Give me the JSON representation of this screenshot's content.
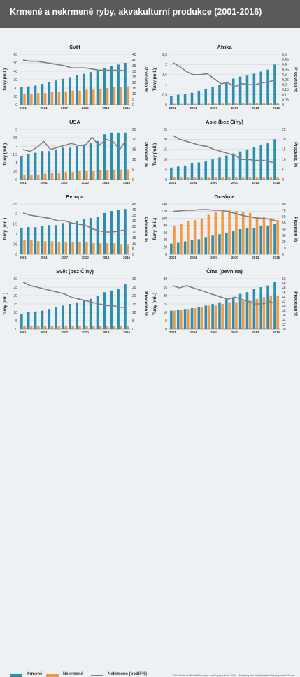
{
  "header": {
    "title": "Krmené a nekrmené ryby, akvakulturní produkce (2001-2016)"
  },
  "colors": {
    "fed": "#2b8eae",
    "nonfed": "#f29a43",
    "share": "#808080",
    "header_bg": "#5a5a5a"
  },
  "legend": {
    "fed": "Krmené",
    "nonfed": "Nekrmené",
    "share": "Nekrmené (podíl %)"
  },
  "source": "The State of World Fisheries and Aquaculture 2018 - Meeting the Sustainable Development Goals",
  "chart_data": [
    {
      "type": "bar",
      "title": "Svět",
      "ylabel": "Tuny (mil.)",
      "y2label": "Procento %",
      "x": [
        2001,
        2002,
        2003,
        2004,
        2005,
        2006,
        2007,
        2008,
        2009,
        2010,
        2011,
        2012,
        2013,
        2014,
        2015,
        2016
      ],
      "xticks": [
        "2001",
        "2004",
        "2007",
        "2010",
        "2013",
        "2016"
      ],
      "ylim": [
        0,
        60
      ],
      "yticks": [
        0,
        10,
        20,
        30,
        40,
        50,
        60
      ],
      "y2lim": [
        0,
        45
      ],
      "y2ticks": [
        0,
        5,
        10,
        15,
        20,
        25,
        30,
        35,
        40,
        45
      ],
      "series": [
        {
          "name": "Krmené",
          "values": [
            21,
            22,
            23,
            25,
            27,
            29,
            31,
            33,
            35,
            37,
            39,
            41,
            44,
            46,
            48,
            50
          ]
        },
        {
          "name": "Nekrmené",
          "values": [
            13,
            13,
            14,
            14,
            15,
            15,
            16,
            17,
            17,
            18,
            18,
            19,
            20,
            21,
            21,
            22
          ]
        },
        {
          "name": "Nekrmené (podíl %)",
          "axis": "right",
          "values": [
            40,
            39,
            39,
            38,
            37,
            36,
            35,
            33,
            33,
            33,
            32,
            31,
            31,
            31,
            31,
            30
          ]
        }
      ]
    },
    {
      "type": "bar",
      "title": "Afrika",
      "ylabel": "Tuny (mil.)",
      "y2label": "Procento %",
      "x": [
        2001,
        2002,
        2003,
        2004,
        2005,
        2006,
        2007,
        2008,
        2009,
        2010,
        2011,
        2012,
        2013,
        2014,
        2015,
        2016
      ],
      "xticks": [
        "2001",
        "2004",
        "2007",
        "2010",
        "2013",
        "2016"
      ],
      "ylim": [
        0,
        2.5
      ],
      "yticks": [
        0,
        0.5,
        1,
        1.5,
        2,
        2.5
      ],
      "y2lim": [
        0,
        0.5
      ],
      "y2ticks": [
        0,
        0.05,
        0.1,
        0.15,
        0.2,
        0.25,
        0.3,
        0.35,
        0.4,
        0.45,
        0.5
      ],
      "series": [
        {
          "name": "Krmené",
          "values": [
            0.45,
            0.5,
            0.55,
            0.6,
            0.7,
            0.8,
            0.9,
            1.0,
            1.15,
            1.3,
            1.4,
            1.45,
            1.55,
            1.65,
            1.75,
            2.0
          ]
        },
        {
          "name": "Nekrmené",
          "values": [
            0.05,
            0.05,
            0.05,
            0.05,
            0.05,
            0.06,
            0.06,
            0.06,
            0.07,
            0.07,
            0.07,
            0.07,
            0.08,
            0.08,
            0.08,
            0.08
          ]
        },
        {
          "name": "Nekrmené (podíl %)",
          "axis": "right",
          "values": [
            0.42,
            0.38,
            0.33,
            0.3,
            0.3,
            0.31,
            0.26,
            0.21,
            0.22,
            0.18,
            0.21,
            0.2,
            0.2,
            0.22,
            0.23,
            0.25
          ]
        }
      ]
    },
    {
      "type": "bar",
      "title": "USA",
      "ylabel": "Tuny (mil.)",
      "y2label": "Procento %",
      "x": [
        2001,
        2002,
        2003,
        2004,
        2005,
        2006,
        2007,
        2008,
        2009,
        2010,
        2011,
        2012,
        2013,
        2014,
        2015,
        2016
      ],
      "xticks": [
        "2001",
        "2004",
        "2007",
        "2010",
        "2013",
        "2016"
      ],
      "ylim": [
        0,
        3
      ],
      "yticks": [
        0,
        0.5,
        1,
        1.5,
        2,
        2.5,
        3
      ],
      "y2lim": [
        0,
        25
      ],
      "y2ticks": [
        0,
        5,
        10,
        15,
        20,
        25
      ],
      "series": [
        {
          "name": "Krmené",
          "values": [
            1.4,
            1.5,
            1.6,
            1.7,
            1.7,
            1.8,
            1.9,
            1.9,
            2.0,
            2.1,
            2.2,
            2.3,
            2.7,
            2.8,
            2.8,
            2.8
          ]
        },
        {
          "name": "Nekrmené",
          "values": [
            0.3,
            0.3,
            0.3,
            0.35,
            0.4,
            0.4,
            0.45,
            0.45,
            0.5,
            0.5,
            0.5,
            0.55,
            0.55,
            0.6,
            0.6,
            0.6
          ]
        },
        {
          "name": "Nekrmené (podíl %)",
          "axis": "right",
          "values": [
            15,
            14,
            16,
            19,
            15,
            16,
            17,
            18,
            17,
            17,
            21,
            17,
            20,
            19,
            15,
            20
          ]
        }
      ]
    },
    {
      "type": "bar",
      "title": "Asie (bez Číny)",
      "ylabel": "Tuny (mil.)",
      "y2label": "Procento %",
      "x": [
        2001,
        2002,
        2003,
        2004,
        2005,
        2006,
        2007,
        2008,
        2009,
        2010,
        2011,
        2012,
        2013,
        2014,
        2015,
        2016
      ],
      "xticks": [
        "2001",
        "2004",
        "2007",
        "2010",
        "2013",
        "2016"
      ],
      "ylim": [
        0,
        25
      ],
      "yticks": [
        0,
        5,
        10,
        15,
        20,
        25
      ],
      "y2lim": [
        0,
        25
      ],
      "y2ticks": [
        0,
        5,
        10,
        15,
        20,
        25
      ],
      "series": [
        {
          "name": "Krmené",
          "values": [
            6,
            6.5,
            7,
            8,
            8.5,
            9,
            10,
            11,
            12,
            13,
            14,
            15,
            16,
            17,
            18,
            20
          ]
        },
        {
          "name": "Nekrmené",
          "values": [
            1,
            1,
            1,
            1,
            1,
            1,
            1,
            1,
            1,
            1,
            1,
            1,
            1,
            1,
            1,
            1
          ]
        },
        {
          "name": "Nekrmené (podíl %)",
          "axis": "right",
          "values": [
            22,
            20,
            19,
            18,
            17,
            16.5,
            15,
            14,
            13,
            12,
            10,
            10,
            9.5,
            9.5,
            9,
            8
          ]
        }
      ]
    },
    {
      "type": "bar",
      "title": "Evropa",
      "ylabel": "Tuny (mil.)",
      "y2label": "Procento %",
      "x": [
        2001,
        2002,
        2003,
        2004,
        2005,
        2006,
        2007,
        2008,
        2009,
        2010,
        2011,
        2012,
        2013,
        2014,
        2015,
        2016
      ],
      "xticks": [
        "2001",
        "2004",
        "2007",
        "2010",
        "2013",
        "2016"
      ],
      "ylim": [
        0,
        2.5
      ],
      "yticks": [
        0,
        0.5,
        1,
        1.5,
        2,
        2.5
      ],
      "y2lim": [
        0,
        45
      ],
      "y2ticks": [
        0,
        5,
        10,
        15,
        20,
        25,
        30,
        35,
        40,
        45
      ],
      "series": [
        {
          "name": "Krmené",
          "values": [
            1.3,
            1.35,
            1.35,
            1.4,
            1.45,
            1.45,
            1.55,
            1.6,
            1.65,
            1.75,
            1.8,
            1.85,
            2.05,
            2.15,
            2.2,
            2.25
          ]
        },
        {
          "name": "Nekrmené",
          "values": [
            0.7,
            0.7,
            0.65,
            0.65,
            0.65,
            0.6,
            0.6,
            0.6,
            0.6,
            0.6,
            0.55,
            0.55,
            0.55,
            0.55,
            0.5,
            0.5
          ]
        },
        {
          "name": "Nekrmené (podíl %)",
          "axis": "right",
          "values": [
            37,
            35,
            34,
            33,
            32,
            30,
            30,
            28,
            27,
            26,
            23,
            21,
            20,
            20,
            21,
            22
          ]
        }
      ]
    },
    {
      "type": "bar",
      "title": "Oceánie",
      "ylabel": "Tuny (mil.)",
      "y2label": "Procento %",
      "x": [
        2001,
        2002,
        2003,
        2004,
        2005,
        2006,
        2007,
        2008,
        2009,
        2010,
        2011,
        2012,
        2013,
        2014,
        2015,
        2016
      ],
      "xticks": [
        "2001",
        "2004",
        "2007",
        "2010",
        "2013",
        "2016"
      ],
      "ylim": [
        0,
        140
      ],
      "yticks": [
        0,
        20,
        40,
        60,
        80,
        100,
        120,
        140
      ],
      "y2lim": [
        0,
        80
      ],
      "y2ticks": [
        0,
        10,
        20,
        30,
        40,
        50,
        60,
        70,
        80
      ],
      "series": [
        {
          "name": "Krmené",
          "values": [
            30,
            32,
            36,
            40,
            42,
            48,
            52,
            56,
            60,
            64,
            70,
            74,
            72,
            78,
            80,
            85
          ]
        },
        {
          "name": "Nekrmené",
          "values": [
            80,
            85,
            92,
            95,
            100,
            110,
            118,
            120,
            122,
            120,
            118,
            115,
            100,
            105,
            100,
            95
          ]
        },
        {
          "name": "Nekrmené (podíl %)",
          "axis": "right",
          "values": [
            68,
            69,
            70,
            70,
            71,
            71,
            70,
            70,
            68,
            65,
            62,
            60,
            58,
            57,
            56,
            53
          ]
        }
      ]
    },
    {
      "type": "bar",
      "title": "Svět (bez Číny)",
      "ylabel": "Tuny (mil.)",
      "y2label": "Procento %",
      "x": [
        2001,
        2002,
        2003,
        2004,
        2005,
        2006,
        2007,
        2008,
        2009,
        2010,
        2011,
        2012,
        2013,
        2014,
        2015,
        2016
      ],
      "xticks": [
        "2001",
        "2004",
        "2007",
        "2010",
        "2013",
        "2016"
      ],
      "ylim": [
        0,
        30
      ],
      "yticks": [
        0,
        5,
        10,
        15,
        20,
        25,
        30
      ],
      "y2lim": [
        0,
        30
      ],
      "y2ticks": [
        0,
        5,
        10,
        15,
        20,
        25,
        30
      ],
      "series": [
        {
          "name": "Krmené",
          "values": [
            9,
            10,
            10.5,
            11,
            12,
            13,
            14,
            15,
            16,
            17,
            18,
            20,
            22,
            23,
            24,
            27
          ]
        },
        {
          "name": "Nekrmené",
          "values": [
            2,
            2,
            2,
            2,
            2,
            2,
            2,
            2,
            2,
            2,
            2,
            2,
            2,
            2,
            2,
            2
          ]
        },
        {
          "name": "Nekrmené (podíl %)",
          "axis": "right",
          "values": [
            28,
            26,
            25,
            24,
            23,
            22,
            21,
            19,
            18,
            17,
            16,
            15,
            14,
            14,
            13,
            13
          ]
        }
      ]
    },
    {
      "type": "bar",
      "title": "Čína (pevnina)",
      "ylabel": "Tuny (mil.)",
      "y2label": "Procento %",
      "x": [
        2001,
        2002,
        2003,
        2004,
        2005,
        2006,
        2007,
        2008,
        2009,
        2010,
        2011,
        2012,
        2013,
        2014,
        2015,
        2016
      ],
      "xticks": [
        "2001",
        "2004",
        "2007",
        "2010",
        "2013",
        "2016"
      ],
      "ylim": [
        0,
        30
      ],
      "yticks": [
        0,
        5,
        10,
        15,
        20,
        25,
        30
      ],
      "y2lim": [
        30,
        52
      ],
      "y2ticks": [
        30,
        32,
        34,
        36,
        38,
        40,
        42,
        44,
        46,
        48,
        50,
        52
      ],
      "series": [
        {
          "name": "Krmené",
          "values": [
            11,
            11.5,
            12,
            12.5,
            13,
            14,
            15,
            16,
            18,
            19,
            21,
            22,
            24,
            25,
            26,
            28
          ]
        },
        {
          "name": "Nekrmené",
          "values": [
            11,
            11.5,
            12,
            12.5,
            13,
            14,
            14,
            15,
            16,
            16,
            17,
            17,
            18,
            19,
            20,
            20
          ]
        },
        {
          "name": "Nekrmené (podíl %)",
          "axis": "right",
          "values": [
            49,
            48,
            49,
            48,
            47,
            46,
            45,
            44,
            43,
            44,
            43,
            42,
            41,
            41,
            42,
            41
          ]
        }
      ]
    }
  ]
}
